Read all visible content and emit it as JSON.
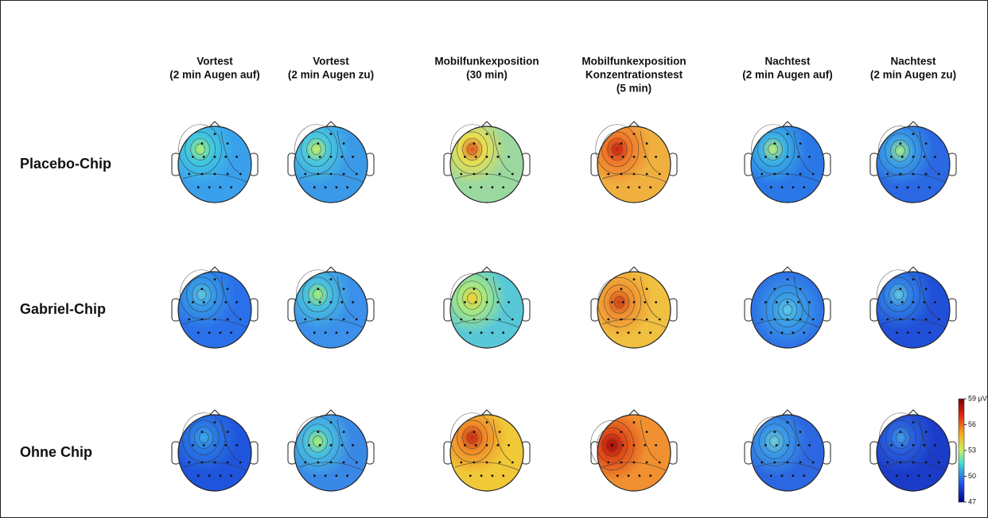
{
  "columns": [
    [
      "Vortest",
      "(2 min Augen auf)"
    ],
    [
      "Vortest",
      "(2 min Augen zu)"
    ],
    [
      "Mobilfunkexposition",
      "(30 min)"
    ],
    [
      "Mobilfunkexposition",
      "Konzentrationstest",
      "(5 min)"
    ],
    [
      "Nachtest",
      "(2 min Augen auf)"
    ],
    [
      "Nachtest",
      "(2 min Augen zu)"
    ]
  ],
  "rows": [
    "Placebo-Chip",
    "Gabriel-Chip",
    "Ohne Chip"
  ],
  "colorbar": {
    "range": [
      47,
      59
    ],
    "ticks": [
      {
        "value": 59,
        "label": "59 µV²"
      },
      56,
      53,
      50,
      47
    ]
  }
}
